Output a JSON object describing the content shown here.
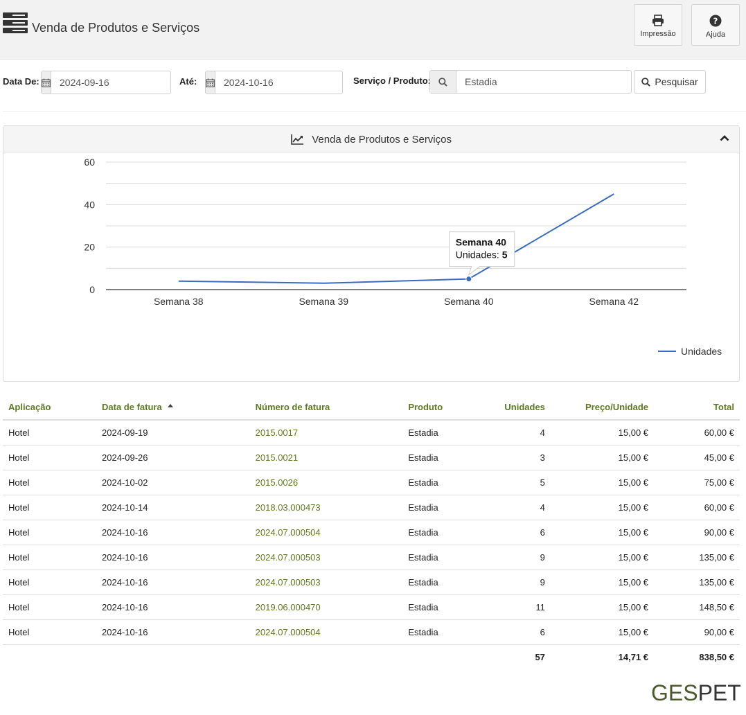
{
  "header": {
    "title": "Venda de Produtos e Serviços",
    "print_label": "Impressão",
    "help_label": "Ajuda"
  },
  "filters": {
    "from_label": "Data De:",
    "from_value": "2024-09-16",
    "to_label": "Até:",
    "to_value": "2024-10-16",
    "service_label": "Serviço / Produto:",
    "service_value": "Estadia",
    "search_label": "Pesquisar"
  },
  "chart_panel": {
    "title": "Venda de Produtos e Serviços"
  },
  "chart_data": {
    "type": "line",
    "categories": [
      "Semana 38",
      "Semana 39",
      "Semana 40",
      "Semana 42"
    ],
    "series": [
      {
        "name": "Unidades",
        "values": [
          4,
          3,
          5,
          45
        ],
        "color": "#3a6bc0"
      }
    ],
    "ylim": [
      0,
      60
    ],
    "yticks": [
      0,
      20,
      40,
      60
    ],
    "grid": true,
    "legend": "bottom-right",
    "tooltip": {
      "category": "Semana 40",
      "label": "Unidades:",
      "value": "5"
    }
  },
  "table": {
    "columns": [
      "Aplicação",
      "Data de fatura",
      "Número de fatura",
      "Produto",
      "Unidades",
      "Preço/Unidade",
      "Total"
    ],
    "rows": [
      [
        "Hotel",
        "2024-09-19",
        "2015.0017",
        "Estadia",
        "4",
        "15,00 €",
        "60,00 €"
      ],
      [
        "Hotel",
        "2024-09-26",
        "2015.0021",
        "Estadia",
        "3",
        "15,00 €",
        "45,00 €"
      ],
      [
        "Hotel",
        "2024-10-02",
        "2015.0026",
        "Estadia",
        "5",
        "15,00 €",
        "75,00 €"
      ],
      [
        "Hotel",
        "2024-10-14",
        "2018.03.000473",
        "Estadia",
        "4",
        "15,00 €",
        "60,00 €"
      ],
      [
        "Hotel",
        "2024-10-16",
        "2024.07.000504",
        "Estadia",
        "6",
        "15,00 €",
        "90,00 €"
      ],
      [
        "Hotel",
        "2024-10-16",
        "2024.07.000503",
        "Estadia",
        "9",
        "15,00 €",
        "135,00 €"
      ],
      [
        "Hotel",
        "2024-10-16",
        "2024.07.000503",
        "Estadia",
        "9",
        "15,00 €",
        "135,00 €"
      ],
      [
        "Hotel",
        "2024-10-16",
        "2019.06.000470",
        "Estadia",
        "11",
        "15,00 €",
        "148,50 €"
      ],
      [
        "Hotel",
        "2024-10-16",
        "2024.07.000504",
        "Estadia",
        "6",
        "15,00 €",
        "90,00 €"
      ]
    ],
    "totals": {
      "units": "57",
      "price": "14,71 €",
      "total": "838,50 €"
    }
  },
  "brand": {
    "part1": "GES",
    "part2": "PET"
  },
  "colors": {
    "accent": "#5b7a1e",
    "line": "#3a6bc0"
  }
}
